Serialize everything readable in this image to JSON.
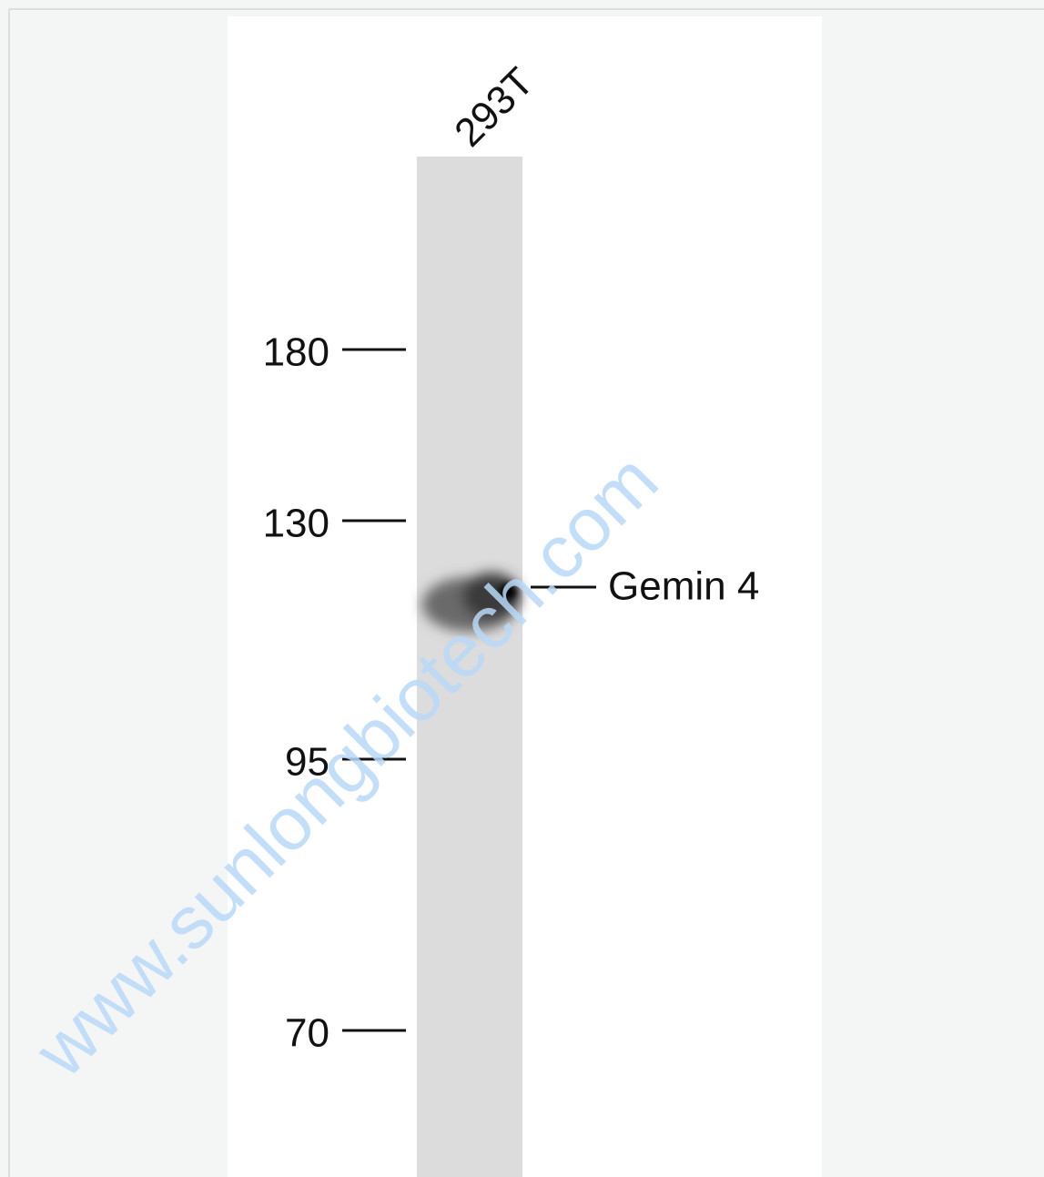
{
  "lanes": [
    {
      "label": "293T"
    }
  ],
  "markers": [
    {
      "label": "180"
    },
    {
      "label": "130"
    },
    {
      "label": "95"
    },
    {
      "label": "70"
    }
  ],
  "band": {
    "label": "Gemin 4"
  },
  "watermark": "www.sunlongbiotech.com"
}
